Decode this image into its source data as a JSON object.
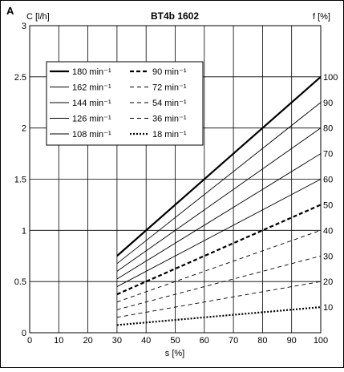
{
  "panel_label": "A",
  "chart_data": {
    "type": "line",
    "title": "BT4b 1602",
    "ylabel": "C [l/h]",
    "ylabel_right": "f [%]",
    "xlabel": "s [%]",
    "xlim": [
      0,
      100
    ],
    "ylim": [
      0,
      3
    ],
    "x_ticks": [
      "0",
      "10",
      "20",
      "30",
      "40",
      "50",
      "60",
      "70",
      "80",
      "90",
      "100"
    ],
    "y_ticks": [
      "0",
      "0.5",
      "1",
      "1.5",
      "2",
      "2.5",
      "3"
    ],
    "right_ticks": [
      {
        "label": "100",
        "y": 2.5
      },
      {
        "label": "90",
        "y": 2.25
      },
      {
        "label": "80",
        "y": 2.0
      },
      {
        "label": "70",
        "y": 1.75
      },
      {
        "label": "60",
        "y": 1.5
      },
      {
        "label": "50",
        "y": 1.25
      },
      {
        "label": "40",
        "y": 1.0
      },
      {
        "label": "30",
        "y": 0.75
      },
      {
        "label": "20",
        "y": 0.5
      },
      {
        "label": "10",
        "y": 0.25
      }
    ],
    "grid": true,
    "legend_position": "top-left",
    "series": [
      {
        "name": "180 min⁻¹",
        "style": "solid-bold",
        "x": [
          30,
          100
        ],
        "y": [
          0.75,
          2.5
        ]
      },
      {
        "name": "162 min⁻¹",
        "style": "solid",
        "x": [
          30,
          100
        ],
        "y": [
          0.675,
          2.25
        ]
      },
      {
        "name": "144 min⁻¹",
        "style": "solid",
        "x": [
          30,
          100
        ],
        "y": [
          0.6,
          2.0
        ]
      },
      {
        "name": "126 min⁻¹",
        "style": "solid",
        "x": [
          30,
          100
        ],
        "y": [
          0.525,
          1.75
        ]
      },
      {
        "name": "108 min⁻¹",
        "style": "solid",
        "x": [
          30,
          100
        ],
        "y": [
          0.45,
          1.5
        ]
      },
      {
        "name": "90 min⁻¹",
        "style": "dashed-bold",
        "x": [
          30,
          100
        ],
        "y": [
          0.375,
          1.25
        ]
      },
      {
        "name": "72 min⁻¹",
        "style": "dashed",
        "x": [
          30,
          100
        ],
        "y": [
          0.3,
          1.0
        ]
      },
      {
        "name": "54 min⁻¹",
        "style": "dashed",
        "x": [
          30,
          100
        ],
        "y": [
          0.225,
          0.75
        ]
      },
      {
        "name": "36 min⁻¹",
        "style": "dashed",
        "x": [
          30,
          100
        ],
        "y": [
          0.15,
          0.5
        ]
      },
      {
        "name": "18 min⁻¹",
        "style": "dotted-bold",
        "x": [
          30,
          100
        ],
        "y": [
          0.075,
          0.25
        ]
      }
    ]
  }
}
